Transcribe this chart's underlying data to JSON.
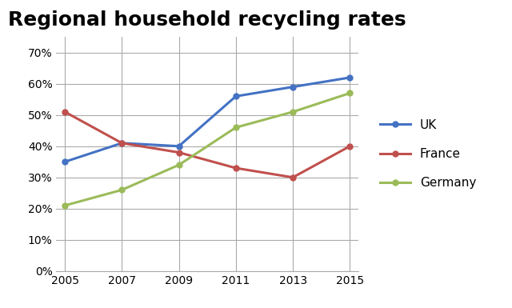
{
  "title": "Regional household recycling rates",
  "title_fontsize": 18,
  "title_fontweight": "bold",
  "years": [
    2005,
    2007,
    2009,
    2011,
    2013,
    2015
  ],
  "series": [
    {
      "label": "UK",
      "color": "#4472C4",
      "values": [
        0.35,
        0.41,
        0.4,
        0.56,
        0.59,
        0.62
      ]
    },
    {
      "label": "France",
      "color": "#C0504D",
      "values": [
        0.51,
        0.41,
        0.38,
        0.33,
        0.3,
        0.4
      ]
    },
    {
      "label": "Germany",
      "color": "#9BBB59",
      "values": [
        0.21,
        0.26,
        0.34,
        0.46,
        0.51,
        0.57
      ]
    }
  ],
  "ylim": [
    0.0,
    0.75
  ],
  "yticks": [
    0.0,
    0.1,
    0.2,
    0.3,
    0.4,
    0.5,
    0.6,
    0.7
  ],
  "xticks": [
    2005,
    2007,
    2009,
    2011,
    2013,
    2015
  ],
  "line_width": 2.2,
  "marker": "o",
  "marker_size": 5,
  "grid_color": "#aaaaaa",
  "grid_linewidth": 0.8,
  "background_color": "#ffffff"
}
